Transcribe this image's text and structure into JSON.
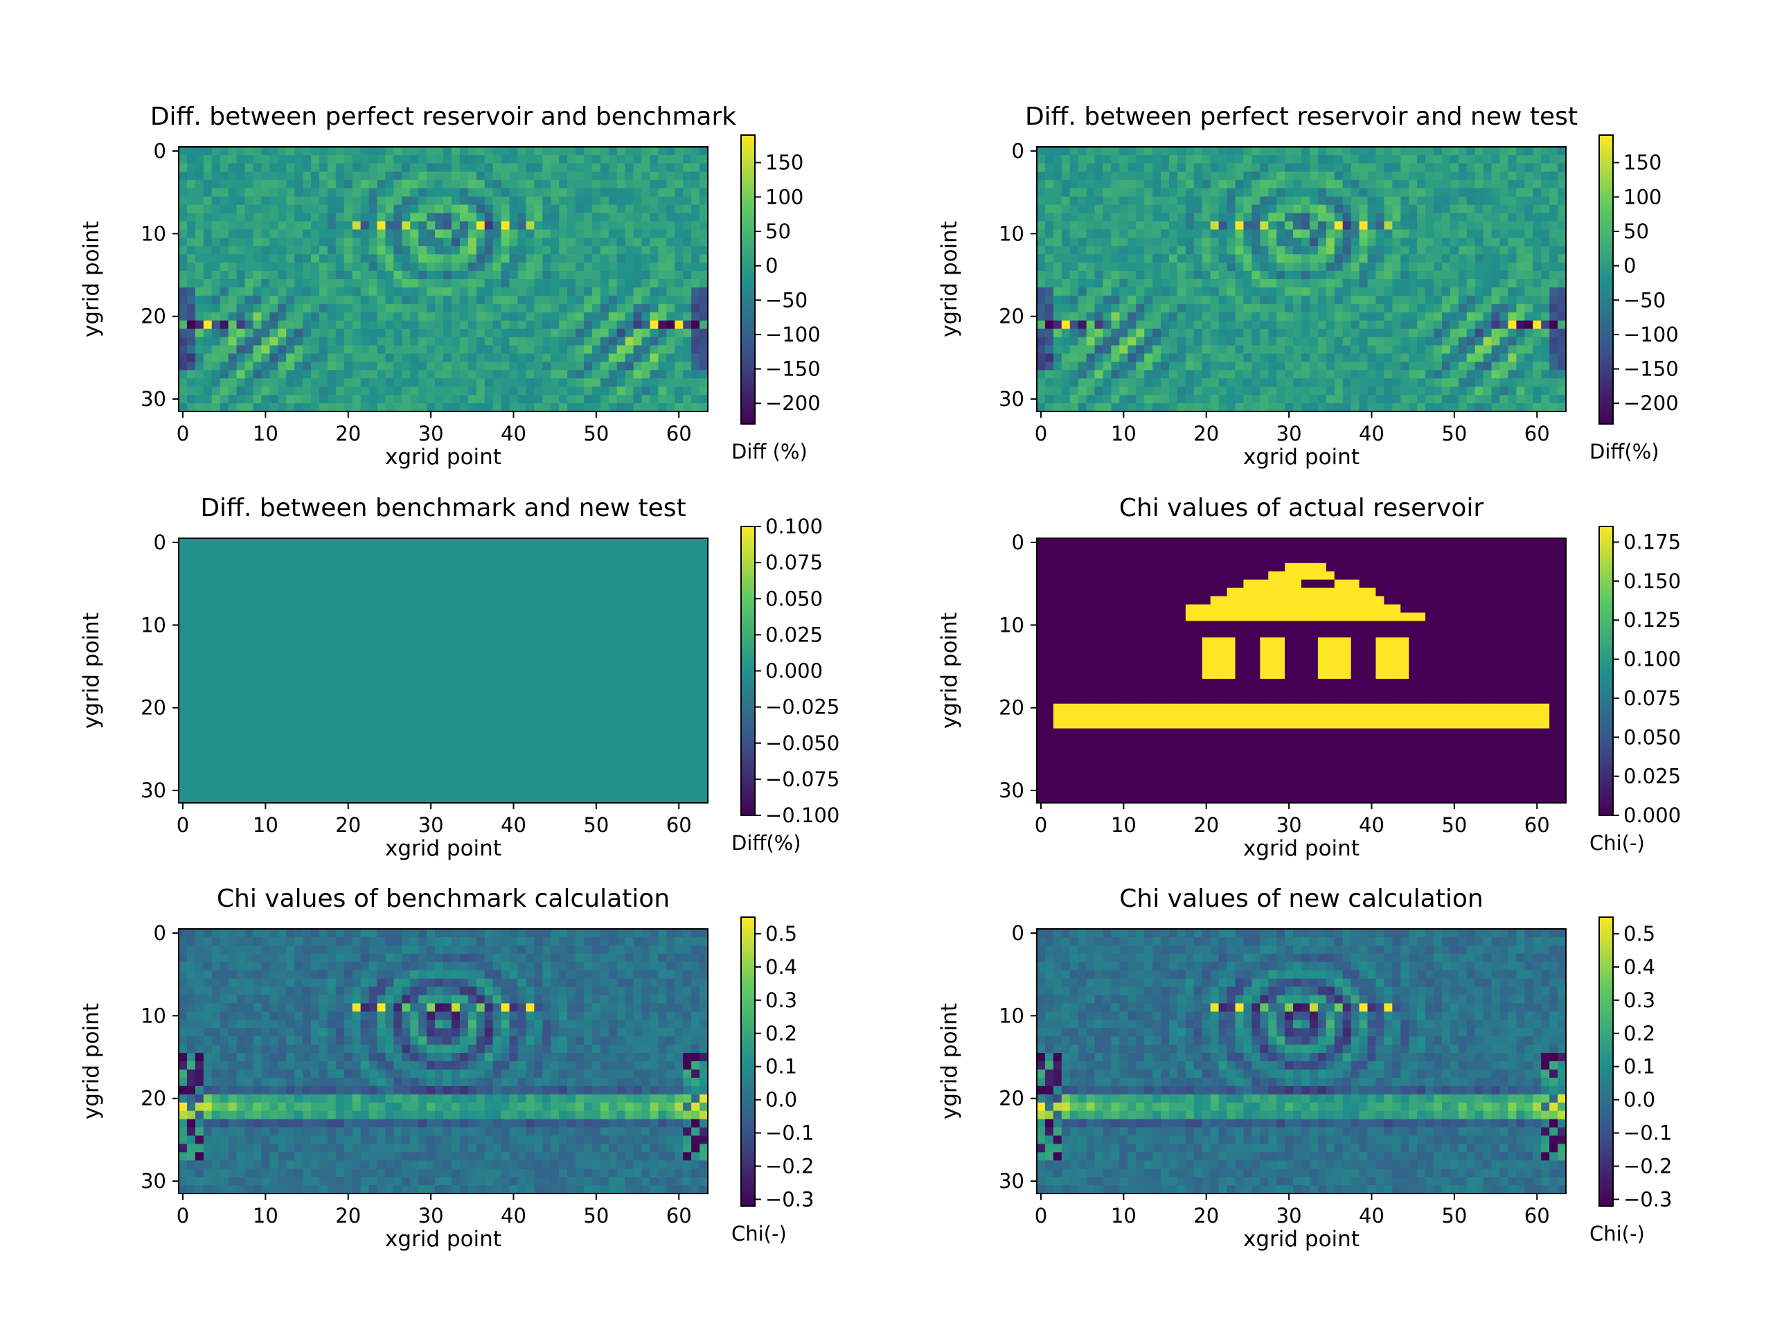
{
  "colormap": [
    "#440154",
    "#3b528b",
    "#21918c",
    "#5ec962",
    "#fde725"
  ],
  "chart_data": [
    {
      "type": "heatmap",
      "title": "Diff. between perfect reservoir and benchmark",
      "xlabel": "xgrid point",
      "ylabel": "ygrid point",
      "colorbar_label": "Diff (%)",
      "grid_size": [
        64,
        32
      ],
      "pattern": "diff",
      "xticks": [
        "0",
        "10",
        "20",
        "30",
        "40",
        "50",
        "60"
      ],
      "yticks": [
        "0",
        "10",
        "20",
        "30"
      ],
      "crange": [
        -230,
        190
      ],
      "cticks": [
        "150",
        "100",
        "50",
        "0",
        "−50",
        "−100",
        "−150",
        "−200"
      ],
      "cvalues": [
        150,
        100,
        50,
        0,
        -50,
        -100,
        -150,
        -200
      ],
      "grid": false
    },
    {
      "type": "heatmap",
      "title": "Diff. between perfect reservoir and new test",
      "xlabel": "xgrid point",
      "ylabel": "ygrid point",
      "colorbar_label": "Diff(%)",
      "grid_size": [
        64,
        32
      ],
      "pattern": "diff",
      "xticks": [
        "0",
        "10",
        "20",
        "30",
        "40",
        "50",
        "60"
      ],
      "yticks": [
        "0",
        "10",
        "20",
        "30"
      ],
      "crange": [
        -230,
        190
      ],
      "cticks": [
        "150",
        "100",
        "50",
        "0",
        "−50",
        "−100",
        "−150",
        "−200"
      ],
      "cvalues": [
        150,
        100,
        50,
        0,
        -50,
        -100,
        -150,
        -200
      ],
      "grid": false
    },
    {
      "type": "heatmap",
      "title": "Diff. between benchmark and new test",
      "xlabel": "xgrid point",
      "ylabel": "ygrid point",
      "colorbar_label": "Diff(%)",
      "grid_size": [
        64,
        32
      ],
      "pattern": "zero",
      "xticks": [
        "0",
        "10",
        "20",
        "30",
        "40",
        "50",
        "60"
      ],
      "yticks": [
        "0",
        "10",
        "20",
        "30"
      ],
      "crange": [
        -0.1,
        0.1
      ],
      "cticks": [
        "0.100",
        "0.075",
        "0.050",
        "0.025",
        "0.000",
        "−0.025",
        "−0.050",
        "−0.075",
        "−0.100"
      ],
      "cvalues": [
        0.1,
        0.075,
        0.05,
        0.025,
        0.0,
        -0.025,
        -0.05,
        -0.075,
        -0.1
      ],
      "grid": false
    },
    {
      "type": "heatmap",
      "title": "Chi values of actual reservoir",
      "xlabel": "xgrid point",
      "ylabel": "ygrid point",
      "colorbar_label": "Chi(-)",
      "grid_size": [
        64,
        32
      ],
      "pattern": "reservoir",
      "xticks": [
        "0",
        "10",
        "20",
        "30",
        "40",
        "50",
        "60"
      ],
      "yticks": [
        "0",
        "10",
        "20",
        "30"
      ],
      "crange": [
        0,
        0.185
      ],
      "cticks": [
        "0.175",
        "0.150",
        "0.125",
        "0.100",
        "0.075",
        "0.050",
        "0.025",
        "0.000"
      ],
      "cvalues": [
        0.175,
        0.15,
        0.125,
        0.1,
        0.075,
        0.05,
        0.025,
        0.0
      ],
      "reservoir_value": 0.185,
      "grid": false
    },
    {
      "type": "heatmap",
      "title": "Chi values of benchmark calculation",
      "xlabel": "xgrid point",
      "ylabel": "ygrid point",
      "colorbar_label": "Chi(-)",
      "grid_size": [
        64,
        32
      ],
      "pattern": "chi",
      "xticks": [
        "0",
        "10",
        "20",
        "30",
        "40",
        "50",
        "60"
      ],
      "yticks": [
        "0",
        "10",
        "20",
        "30"
      ],
      "crange": [
        -0.32,
        0.55
      ],
      "cticks": [
        "0.5",
        "0.4",
        "0.3",
        "0.2",
        "0.1",
        "0.0",
        "−0.1",
        "−0.2",
        "−0.3"
      ],
      "cvalues": [
        0.5,
        0.4,
        0.3,
        0.2,
        0.1,
        0.0,
        -0.1,
        -0.2,
        -0.3
      ],
      "grid": false
    },
    {
      "type": "heatmap",
      "title": "Chi values of new calculation",
      "xlabel": "xgrid point",
      "ylabel": "ygrid point",
      "colorbar_label": "Chi(-)",
      "grid_size": [
        64,
        32
      ],
      "pattern": "chi",
      "xticks": [
        "0",
        "10",
        "20",
        "30",
        "40",
        "50",
        "60"
      ],
      "yticks": [
        "0",
        "10",
        "20",
        "30"
      ],
      "crange": [
        -0.32,
        0.55
      ],
      "cticks": [
        "0.5",
        "0.4",
        "0.3",
        "0.2",
        "0.1",
        "0.0",
        "−0.1",
        "−0.2",
        "−0.3"
      ],
      "cvalues": [
        0.5,
        0.4,
        0.3,
        0.2,
        0.1,
        0.0,
        -0.1,
        -0.2,
        -0.3
      ],
      "grid": false
    }
  ]
}
